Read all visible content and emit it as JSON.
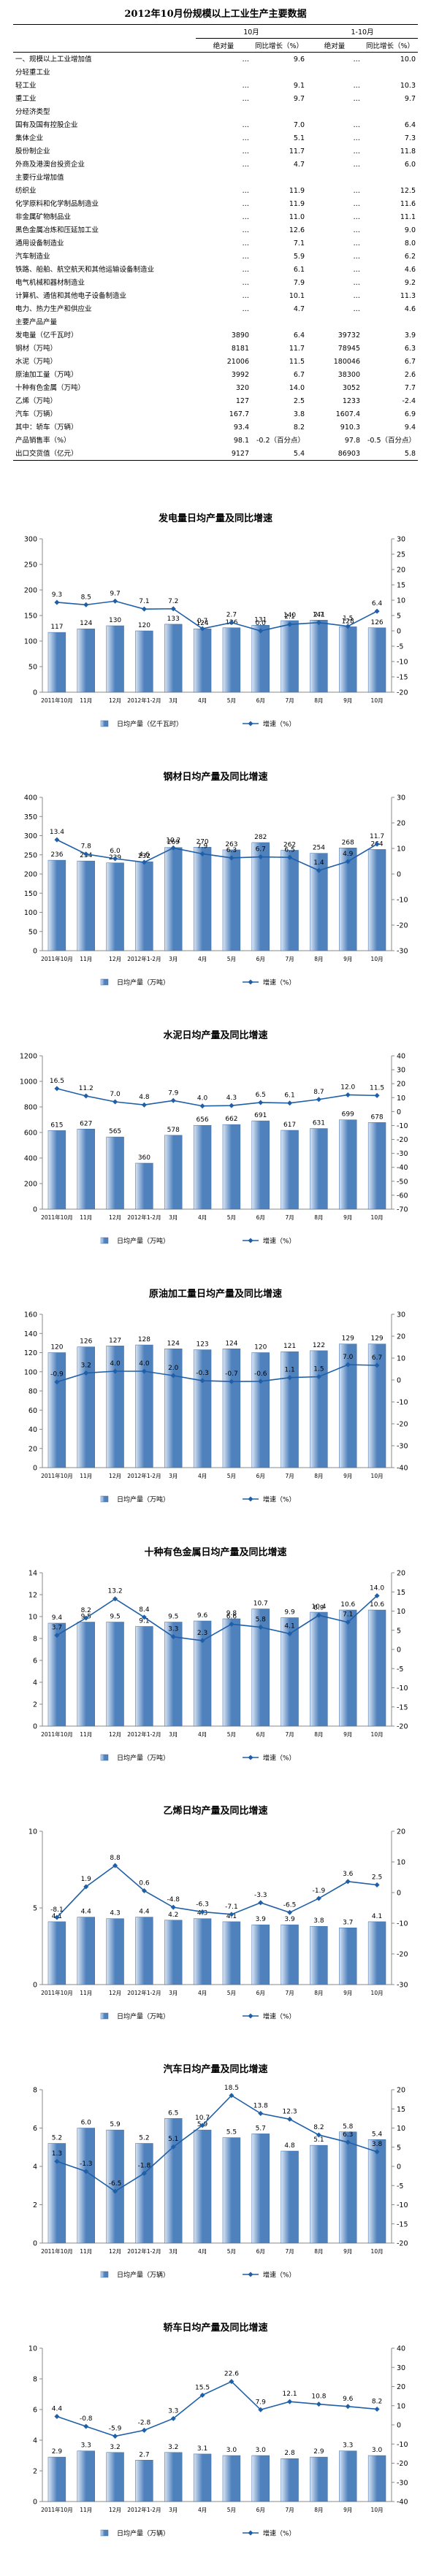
{
  "table": {
    "title": "2012年10月份规模以上工业生产主要数据",
    "header": {
      "groups": [
        "10月",
        "1-10月"
      ],
      "columns": [
        "绝对量",
        "同比增长（%）",
        "绝对量",
        "同比增长（%）"
      ]
    },
    "rows": [
      [
        "一、规模以上工业增加值",
        "…",
        "9.6",
        "…",
        "10.0"
      ],
      [
        "分轻重工业"
      ],
      [
        "轻工业",
        "…",
        "9.1",
        "…",
        "10.3"
      ],
      [
        "重工业",
        "…",
        "9.7",
        "…",
        "9.7"
      ],
      [
        "分经济类型"
      ],
      [
        "国有及国有控股企业",
        "…",
        "7.0",
        "…",
        "6.4"
      ],
      [
        "集体企业",
        "…",
        "5.1",
        "…",
        "7.3"
      ],
      [
        "股份制企业",
        "…",
        "11.7",
        "…",
        "11.8"
      ],
      [
        "外商及港澳台投资企业",
        "…",
        "4.7",
        "…",
        "6.0"
      ],
      [
        "主要行业增加值"
      ],
      [
        "纺织业",
        "…",
        "11.9",
        "…",
        "12.5"
      ],
      [
        "化学原料和化学制品制造业",
        "…",
        "11.9",
        "…",
        "11.6"
      ],
      [
        "非金属矿物制品业",
        "…",
        "11.0",
        "…",
        "11.1"
      ],
      [
        "黑色金属冶炼和压延加工业",
        "…",
        "12.6",
        "…",
        "9.0"
      ],
      [
        "通用设备制造业",
        "…",
        "7.1",
        "…",
        "8.0"
      ],
      [
        "汽车制造业",
        "…",
        "5.9",
        "…",
        "6.2"
      ],
      [
        "铁路、船舶、航空航天和其他运输设备制造业",
        "…",
        "6.1",
        "…",
        "4.6"
      ],
      [
        "电气机械和器材制造业",
        "…",
        "7.9",
        "…",
        "9.2"
      ],
      [
        "计算机、通信和其他电子设备制造业",
        "…",
        "10.1",
        "…",
        "11.3"
      ],
      [
        "电力、热力生产和供应业",
        "…",
        "4.7",
        "…",
        "4.6"
      ],
      [
        "主要产品产量"
      ],
      [
        "发电量（亿千瓦时）",
        "3890",
        "6.4",
        "39732",
        "3.9"
      ],
      [
        "钢材（万吨）",
        "8181",
        "11.7",
        "78945",
        "6.3"
      ],
      [
        "水泥（万吨）",
        "21006",
        "11.5",
        "180046",
        "6.7"
      ],
      [
        "原油加工量（万吨）",
        "3992",
        "6.7",
        "38300",
        "2.6"
      ],
      [
        "十种有色金属（万吨）",
        "320",
        "14.0",
        "3052",
        "7.7"
      ],
      [
        "乙烯（万吨）",
        "127",
        "2.5",
        "1233",
        "-2.4"
      ],
      [
        "汽车（万辆）",
        "167.7",
        "3.8",
        "1607.4",
        "6.9"
      ],
      [
        "其中：轿车（万辆）",
        "93.4",
        "8.2",
        "910.3",
        "9.4"
      ],
      [
        "产品销售率（%）",
        "98.1",
        "-0.2（百分点）",
        "97.8",
        "-0.5（百分点）"
      ],
      [
        "出口交货值（亿元）",
        "9127",
        "5.4",
        "86903",
        "5.8"
      ]
    ]
  },
  "chart_data": [
    {
      "type": "bar-line",
      "title": "发电量日均产量及同比增速",
      "categories": [
        "2011年10月",
        "11月",
        "12月",
        "2012年1-2月",
        "3月",
        "4月",
        "5月",
        "6月",
        "7月",
        "8月",
        "9月",
        "10月"
      ],
      "series": [
        {
          "name": "日均产量（亿千瓦时）",
          "type": "bar",
          "color": "#4f81bd",
          "values": [
            117,
            124,
            130,
            120,
            133,
            124,
            126,
            131,
            140,
            141,
            128,
            126
          ]
        },
        {
          "name": "增速（%）",
          "type": "line",
          "axis": "y2",
          "color": "#1f5fa8",
          "values": [
            9.3,
            8.5,
            9.7,
            7.1,
            7.2,
            0.7,
            2.7,
            0.0,
            2.1,
            2.7,
            1.5,
            6.4
          ],
          "value_labels": [
            "9.3",
            "8.5",
            "9.7",
            "7.1",
            "7.2",
            "0.7",
            "2.7",
            "0.0",
            "2.1",
            "2.7",
            "1.5",
            "6.4"
          ]
        }
      ],
      "ylim": [
        0,
        300
      ],
      "yticks": [
        0,
        50,
        100,
        150,
        200,
        250,
        300
      ],
      "y2lim": [
        -20,
        30
      ],
      "y2ticks": [
        -20,
        -15,
        -10,
        -5,
        0,
        5,
        10,
        15,
        20,
        25,
        30
      ]
    },
    {
      "type": "bar-line",
      "title": "钢材日均产量及同比增速",
      "categories": [
        "2011年10月",
        "11月",
        "12月",
        "2012年1-2月",
        "3月",
        "4月",
        "5月",
        "6月",
        "7月",
        "8月",
        "9月",
        "10月"
      ],
      "series": [
        {
          "name": "日均产量（万吨）",
          "type": "bar",
          "color": "#4f81bd",
          "values": [
            236,
            234,
            229,
            232,
            269,
            270,
            263,
            282,
            262,
            254,
            268,
            264
          ]
        },
        {
          "name": "增速（%）",
          "type": "line",
          "axis": "y2",
          "color": "#1f5fa8",
          "values": [
            13.4,
            7.8,
            6.0,
            4.6,
            10.2,
            7.9,
            6.3,
            6.7,
            6.5,
            1.4,
            4.9,
            11.7
          ],
          "value_labels": [
            "13.4",
            "7.8",
            "6.0",
            "4.6",
            "10.2",
            "7.9",
            "6.3",
            "6.7",
            "6.5",
            "1.4",
            "4.9",
            "11.7"
          ]
        }
      ],
      "ylim": [
        0,
        400
      ],
      "yticks": [
        0,
        50,
        100,
        150,
        200,
        250,
        300,
        350,
        400
      ],
      "y2lim": [
        -30,
        30
      ],
      "y2ticks": [
        -30,
        -20,
        -10,
        0,
        10,
        20,
        30
      ]
    },
    {
      "type": "bar-line",
      "title": "水泥日均产量及同比增速",
      "categories": [
        "2011年10月",
        "11月",
        "12月",
        "2012年1-2月",
        "3月",
        "4月",
        "5月",
        "6月",
        "7月",
        "8月",
        "9月",
        "10月"
      ],
      "series": [
        {
          "name": "日均产量（万吨）",
          "type": "bar",
          "color": "#4f81bd",
          "values": [
            615,
            627,
            565,
            360,
            578,
            656,
            662,
            691,
            617,
            631,
            699,
            678
          ]
        },
        {
          "name": "增速（%）",
          "type": "line",
          "axis": "y2",
          "color": "#1f5fa8",
          "values": [
            16.5,
            11.2,
            7.0,
            4.8,
            7.9,
            4.0,
            4.3,
            6.5,
            6.1,
            8.7,
            12.0,
            11.5
          ],
          "value_labels": [
            "16.5",
            "11.2",
            "7.0",
            "4.8",
            "7.9",
            "4.0",
            "4.3",
            "6.5",
            "6.1",
            "8.7",
            "12.0",
            "11.5"
          ]
        }
      ],
      "ylim": [
        0,
        1200
      ],
      "yticks": [
        0,
        200,
        400,
        600,
        800,
        1000,
        1200
      ],
      "y2lim": [
        -70,
        40
      ],
      "y2ticks": [
        -70,
        -60,
        -50,
        -40,
        -30,
        -20,
        -10,
        0,
        10,
        20,
        30,
        40
      ]
    },
    {
      "type": "bar-line",
      "title": "原油加工量日均产量及同比增速",
      "categories": [
        "2011年10月",
        "11月",
        "12月",
        "2012年1-2月",
        "3月",
        "4月",
        "5月",
        "6月",
        "7月",
        "8月",
        "9月",
        "10月"
      ],
      "series": [
        {
          "name": "日均产量（万吨）",
          "type": "bar",
          "color": "#4f81bd",
          "values": [
            120,
            126,
            127,
            128,
            124,
            123,
            124,
            120,
            121,
            122,
            129,
            129
          ]
        },
        {
          "name": "增速（%）",
          "type": "line",
          "axis": "y2",
          "color": "#1f5fa8",
          "values": [
            -0.9,
            3.2,
            4.0,
            4.0,
            2.0,
            -0.3,
            -0.7,
            -0.6,
            1.1,
            1.5,
            7.0,
            6.7
          ],
          "value_labels": [
            "-0.9",
            "3.2",
            "4.0",
            "4.0",
            "2.0",
            "-0.3",
            "-0.7",
            "-0.6",
            "1.1",
            "1.5",
            "7.0",
            "6.7"
          ]
        }
      ],
      "ylim": [
        0,
        160
      ],
      "yticks": [
        0,
        20,
        40,
        60,
        80,
        100,
        120,
        140,
        160
      ],
      "y2lim": [
        -40,
        30
      ],
      "y2ticks": [
        -40,
        -30,
        -20,
        -10,
        0,
        10,
        20,
        30
      ]
    },
    {
      "type": "bar-line",
      "title": "十种有色金属日均产量及同比增速",
      "categories": [
        "2011年10月",
        "11月",
        "12月",
        "2012年1-2月",
        "3月",
        "4月",
        "5月",
        "6月",
        "7月",
        "8月",
        "9月",
        "10月"
      ],
      "series": [
        {
          "name": "日均产量（万吨）",
          "type": "bar",
          "color": "#4f81bd",
          "values": [
            9.4,
            9.5,
            9.5,
            9.1,
            9.5,
            9.6,
            9.8,
            10.7,
            9.9,
            10.4,
            10.6,
            10.6
          ]
        },
        {
          "name": "增速（%）",
          "type": "line",
          "axis": "y2",
          "color": "#1f5fa8",
          "values": [
            3.7,
            8.2,
            13.2,
            8.4,
            3.3,
            2.3,
            6.6,
            5.8,
            4.1,
            8.9,
            7.1,
            14.0
          ],
          "value_labels": [
            "3.7",
            "8.2",
            "13.2",
            "8.4",
            "3.3",
            "2.3",
            "6.6",
            "5.8",
            "4.1",
            "8.9",
            "7.1",
            "14.0"
          ]
        }
      ],
      "ylim": [
        0,
        14
      ],
      "yticks": [
        0,
        2,
        4,
        6,
        8,
        10,
        12,
        14
      ],
      "y2lim": [
        -20,
        20
      ],
      "y2ticks": [
        -20,
        -15,
        -10,
        -5,
        0,
        5,
        10,
        15,
        20
      ]
    },
    {
      "type": "bar-line",
      "title": "乙烯日均产量及同比增速",
      "categories": [
        "2011年10月",
        "11月",
        "12月",
        "2012年1-2月",
        "3月",
        "4月",
        "5月",
        "6月",
        "7月",
        "8月",
        "9月",
        "10月"
      ],
      "series": [
        {
          "name": "日均产量（万吨）",
          "type": "bar",
          "color": "#4f81bd",
          "values": [
            4.1,
            4.4,
            4.3,
            4.4,
            4.2,
            4.3,
            4.1,
            3.9,
            3.9,
            3.8,
            3.7,
            4.1
          ]
        },
        {
          "name": "增速（%）",
          "type": "line",
          "axis": "y2",
          "color": "#1f5fa8",
          "values": [
            -8.1,
            1.9,
            8.8,
            0.6,
            -4.8,
            -6.3,
            -7.1,
            -3.3,
            -6.5,
            -1.9,
            3.6,
            2.5
          ]
        }
      ],
      "ylim": [
        0,
        10
      ],
      "yticks": [
        0,
        5,
        10
      ],
      "y2lim": [
        -30,
        20
      ],
      "y2ticks": [
        -30,
        -20,
        -10,
        0,
        10,
        20
      ]
    },
    {
      "type": "bar-line",
      "title": "汽车日均产量及同比增速",
      "categories": [
        "2011年10月",
        "11月",
        "12月",
        "2012年1-2月",
        "3月",
        "4月",
        "5月",
        "6月",
        "7月",
        "8月",
        "9月",
        "10月"
      ],
      "series": [
        {
          "name": "日均产量（万辆）",
          "type": "bar",
          "color": "#4f81bd",
          "values": [
            5.2,
            6.0,
            5.9,
            5.2,
            6.5,
            5.9,
            5.5,
            5.7,
            4.8,
            5.1,
            5.8,
            5.4
          ],
          "value_labels": [
            "5.2",
            "6.0",
            "5.9",
            "5.2",
            "6.5",
            "5.9",
            "5.5",
            "5.7",
            "4.8",
            "5.1",
            "5.8",
            "5.4"
          ]
        },
        {
          "name": "增速（%）",
          "type": "line",
          "axis": "y2",
          "color": "#1f5fa8",
          "values": [
            1.3,
            -1.3,
            -6.5,
            -1.8,
            5.1,
            10.7,
            18.5,
            13.8,
            12.3,
            8.2,
            6.3,
            3.8
          ]
        }
      ],
      "ylim": [
        0,
        8
      ],
      "yticks": [
        0,
        2,
        4,
        6,
        8
      ],
      "y2lim": [
        -20,
        20
      ],
      "y2ticks": [
        -20,
        -15,
        -10,
        -5,
        0,
        5,
        10,
        15,
        20
      ]
    },
    {
      "type": "bar-line",
      "title": "轿车日均产量及同比增速",
      "categories": [
        "2011年10月",
        "11月",
        "12月",
        "2012年1-2月",
        "3月",
        "4月",
        "5月",
        "6月",
        "7月",
        "8月",
        "9月",
        "10月"
      ],
      "series": [
        {
          "name": "日均产量（万辆）",
          "type": "bar",
          "color": "#4f81bd",
          "values": [
            2.9,
            3.3,
            3.2,
            2.7,
            3.2,
            3.1,
            3.0,
            3.0,
            2.8,
            2.9,
            3.3,
            3.0
          ],
          "value_labels": [
            "2.9",
            "3.3",
            "3.2",
            "2.7",
            "3.2",
            "3.1",
            "3.0",
            "3.0",
            "2.8",
            "2.9",
            "3.3",
            "3.0"
          ]
        },
        {
          "name": "增速（%）",
          "type": "line",
          "axis": "y2",
          "color": "#1f5fa8",
          "values": [
            4.4,
            -0.8,
            -5.9,
            -2.8,
            3.3,
            15.5,
            22.6,
            7.9,
            12.1,
            10.8,
            9.6,
            8.2
          ]
        }
      ],
      "ylim": [
        0,
        10
      ],
      "yticks": [
        0,
        2,
        4,
        6,
        8,
        10
      ],
      "y2lim": [
        -40,
        40
      ],
      "y2ticks": [
        -40,
        -30,
        -20,
        -10,
        0,
        10,
        20,
        30,
        40
      ]
    }
  ]
}
